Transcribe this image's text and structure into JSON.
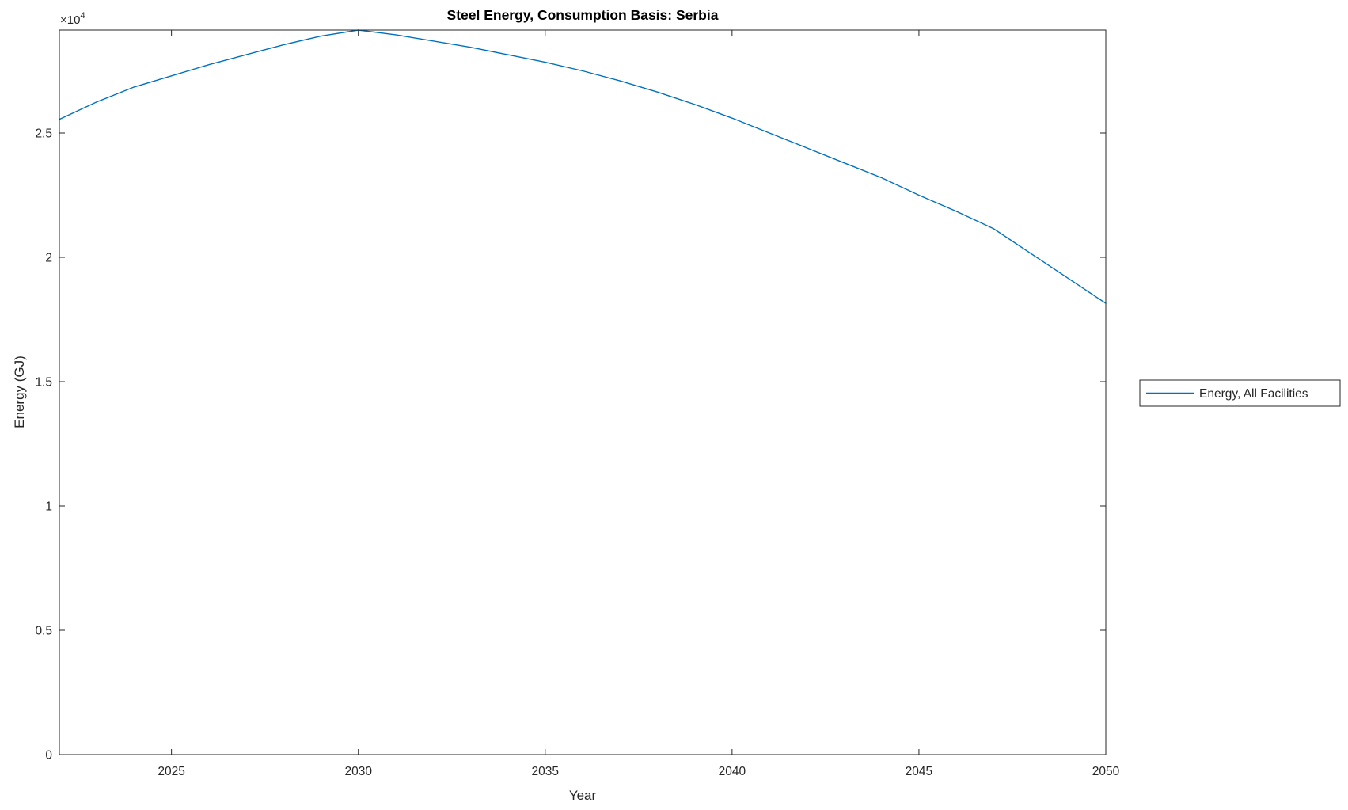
{
  "figure": {
    "background_color": "#ffffff",
    "axis_color": "#262626",
    "title": "Steel Energy, Consumption Basis: Serbia",
    "xlabel": "Year",
    "ylabel": "Energy (GJ)",
    "y_multiplier_base": "×10",
    "y_multiplier_exp": "4"
  },
  "chart_data": {
    "type": "line",
    "title": "Steel Energy, Consumption Basis: Serbia",
    "xlabel": "Year",
    "ylabel": "Energy (GJ)",
    "y_axis_multiplier": "×10^4",
    "xlim": [
      2022,
      2050
    ],
    "ylim": [
      0,
      29140
    ],
    "grid": false,
    "box": true,
    "tick_direction": "in",
    "legend_position": "right-outside-middle",
    "xticks": [
      2025,
      2030,
      2035,
      2040,
      2045,
      2050
    ],
    "xtick_labels": [
      "2025",
      "2030",
      "2035",
      "2040",
      "2045",
      "2050"
    ],
    "yticks": [
      0,
      5000,
      10000,
      15000,
      20000,
      25000
    ],
    "ytick_labels": [
      "0",
      "0.5",
      "1",
      "1.5",
      "2",
      "2.5"
    ],
    "x": [
      2022,
      2023,
      2024,
      2025,
      2026,
      2027,
      2028,
      2029,
      2030,
      2031,
      2032,
      2033,
      2034,
      2035,
      2036,
      2037,
      2038,
      2039,
      2040,
      2041,
      2042,
      2043,
      2044,
      2045,
      2046,
      2047,
      2048,
      2049,
      2050
    ],
    "series": [
      {
        "name": "Energy, All Facilities",
        "color": "#0072BD",
        "values": [
          25550,
          26250,
          26850,
          27300,
          27750,
          28150,
          28550,
          28900,
          29140,
          28950,
          28700,
          28450,
          28150,
          27850,
          27500,
          27100,
          26650,
          26150,
          25600,
          25000,
          24400,
          23800,
          23200,
          22500,
          21850,
          21150,
          20150,
          19150,
          18150
        ]
      }
    ]
  }
}
